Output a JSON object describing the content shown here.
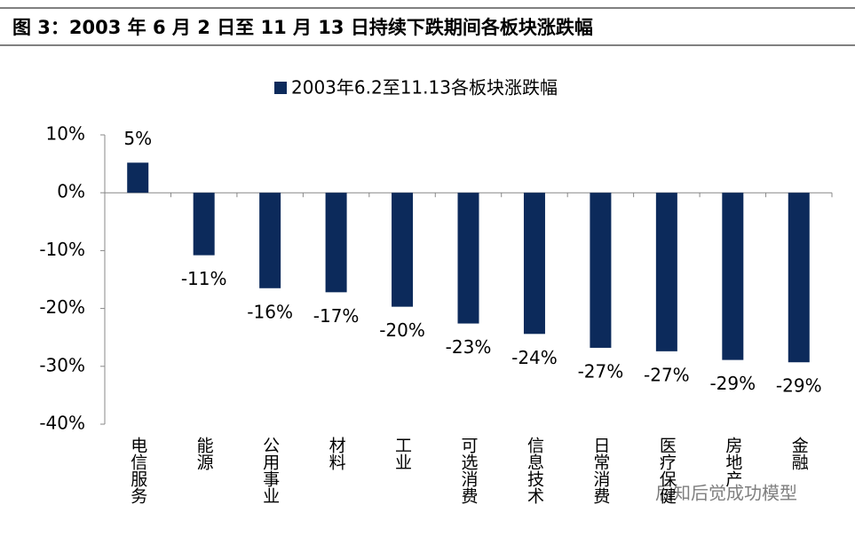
{
  "header": {
    "title": "图 3：2003 年 6 月 2 日至 11 月 13 日持续下跌期间各板块涨跌幅"
  },
  "watermark": "后知后觉成功模型",
  "chart_data": {
    "type": "bar",
    "categories": [
      "电信服务",
      "能源",
      "公用事业",
      "材料",
      "工业",
      "可选消费",
      "信息技术",
      "日常消费",
      "医疗保健",
      "房地产",
      "金融"
    ],
    "series": [
      {
        "name": "2003年6.2至11.13各板块涨跌幅",
        "color": "#0c2a5b",
        "values": [
          5.2,
          -10.8,
          -16.5,
          -17.2,
          -19.7,
          -22.6,
          -24.4,
          -26.8,
          -27.4,
          -28.9,
          -29.3
        ],
        "value_labels": [
          "5%",
          "-11%",
          "-16%",
          "-17%",
          "-20%",
          "-23%",
          "-24%",
          "-27%",
          "-27%",
          "-29%",
          "-29%"
        ]
      }
    ],
    "ylim": [
      -40,
      10
    ],
    "yticks": [
      {
        "value": 10,
        "label": "10%"
      },
      {
        "value": 0,
        "label": "0%"
      },
      {
        "value": -10,
        "label": "-10%"
      },
      {
        "value": -20,
        "label": "-20%"
      },
      {
        "value": -30,
        "label": "-30%"
      },
      {
        "value": -40,
        "label": "-40%"
      }
    ]
  }
}
